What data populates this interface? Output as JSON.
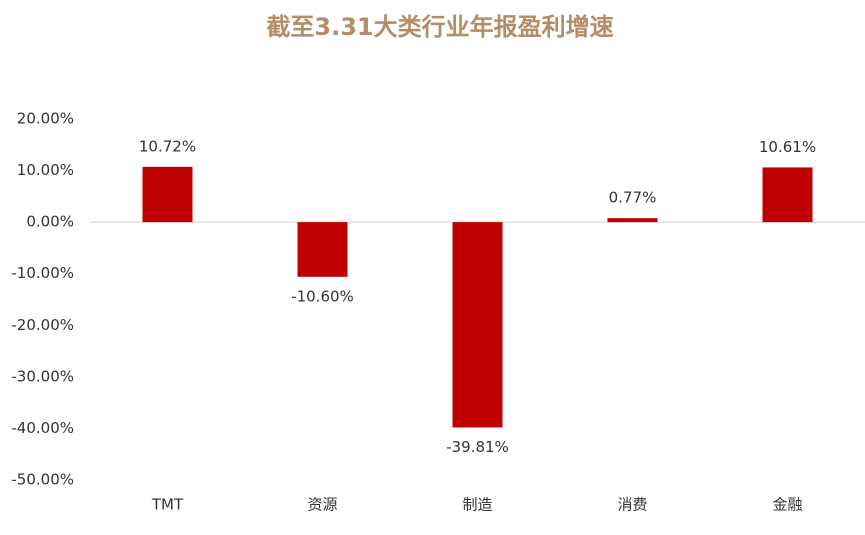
{
  "chart_data": {
    "type": "bar",
    "title": "截至3.31大类行业年报盈利增速",
    "categories": [
      "TMT",
      "资源",
      "制造",
      "消费",
      "金融"
    ],
    "values": [
      10.72,
      -10.6,
      -39.81,
      0.77,
      10.61
    ],
    "value_labels": [
      "10.72%",
      "-10.60%",
      "-39.81%",
      "0.77%",
      "10.61%"
    ],
    "color": "#c00000",
    "ylim": [
      -50,
      20
    ],
    "yticks": [
      {
        "value": 20,
        "label": "20.00%"
      },
      {
        "value": 10,
        "label": "10.00%"
      },
      {
        "value": 0,
        "label": "0.00%"
      },
      {
        "value": -10,
        "label": "-10.00%"
      },
      {
        "value": -20,
        "label": "-20.00%"
      },
      {
        "value": -30,
        "label": "-30.00%"
      },
      {
        "value": -40,
        "label": "-40.00%"
      },
      {
        "value": -50,
        "label": "-50.00%"
      }
    ],
    "grid": false
  }
}
